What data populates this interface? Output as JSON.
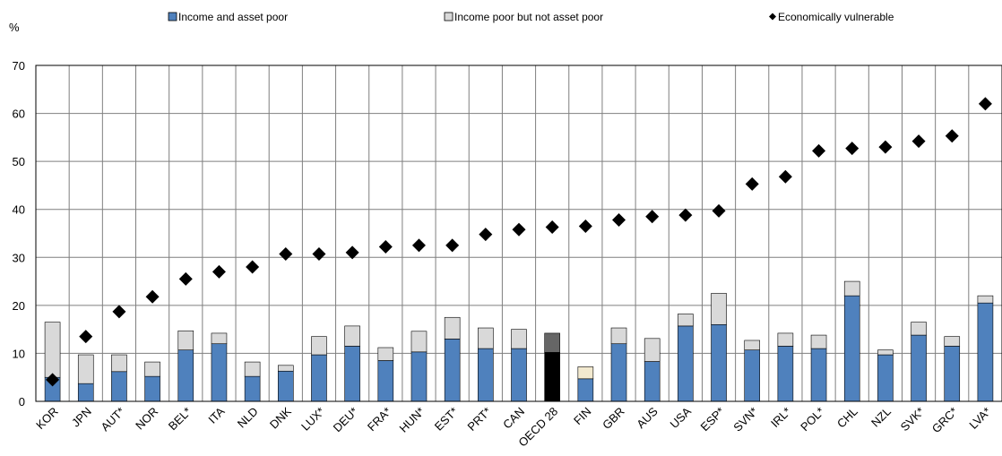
{
  "chart_data": {
    "type": "bar",
    "stacked": true,
    "unit_label": "%",
    "ylim": [
      0,
      70
    ],
    "yticks": [
      0,
      10,
      20,
      30,
      40,
      50,
      60,
      70
    ],
    "grid": true,
    "legend_position": "top",
    "legend": [
      "Income and asset poor",
      "Income poor but not asset poor",
      "Economically vulnerable"
    ],
    "categories": [
      "KOR",
      "JPN",
      "AUT*",
      "NOR",
      "BEL*",
      "ITA",
      "NLD",
      "DNK",
      "LUX*",
      "DEU*",
      "FRA*",
      "HUN*",
      "EST*",
      "PRT*",
      "CAN",
      "OECD 28",
      "FIN",
      "GBR",
      "AUS",
      "USA",
      "ESP*",
      "SVN*",
      "IRL*",
      "POL*",
      "CHL",
      "NZL",
      "SVK*",
      "GRC*",
      "LVA*"
    ],
    "series": [
      {
        "name": "Income and asset poor",
        "kind": "bar",
        "color": "#4f81bd",
        "values": [
          5,
          3.7,
          6.2,
          5.2,
          10.7,
          12,
          5.2,
          6.3,
          9.7,
          11.5,
          8.5,
          10.3,
          13,
          11,
          11,
          10.2,
          4.7,
          12,
          8.3,
          15.7,
          16,
          10.7,
          11.5,
          11,
          22,
          9.7,
          13.8,
          11.5,
          20.5
        ]
      },
      {
        "name": "Income poor but not asset poor",
        "kind": "bar",
        "color": "#d9d9d9",
        "values": [
          11.5,
          6,
          3.5,
          3,
          4,
          2.2,
          3,
          1.2,
          3.8,
          4.2,
          2.7,
          4.3,
          4.5,
          4.3,
          4,
          4,
          2.5,
          3.3,
          4.8,
          2.5,
          6.5,
          2,
          2.7,
          2.8,
          3,
          1,
          2.7,
          2,
          1.5
        ]
      },
      {
        "name": "Economically vulnerable",
        "kind": "marker",
        "color": "#000000",
        "values": [
          4.5,
          13.5,
          18.7,
          21.8,
          25.5,
          27,
          28,
          30.7,
          30.7,
          31,
          32.2,
          32.5,
          32.5,
          34.8,
          35.8,
          36.3,
          36.5,
          37.8,
          38.5,
          38.8,
          39.7,
          45.3,
          46.8,
          52.2,
          52.7,
          53,
          54.2,
          55.3,
          62
        ]
      }
    ],
    "highlight": {
      "category": "OECD 28",
      "colors": [
        "#000000",
        "#666666"
      ]
    },
    "highlight_alt": {
      "category": "FIN",
      "second_color": "#f2e9cf"
    }
  }
}
